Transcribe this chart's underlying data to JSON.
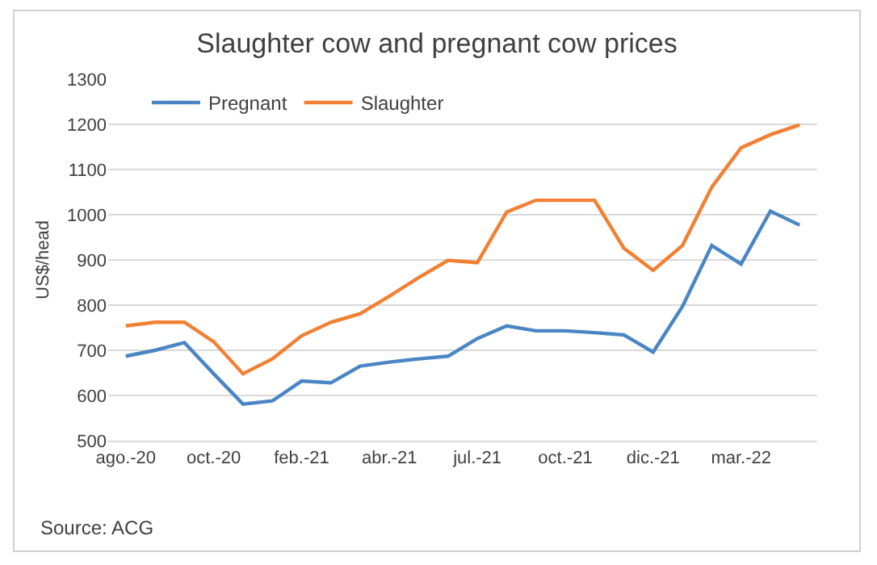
{
  "chart_data": {
    "type": "line",
    "title": "Slaughter cow and pregnant cow prices",
    "ylabel": "US$/head",
    "categories": [
      "ago.-20",
      null,
      null,
      "oct.-20",
      null,
      null,
      "feb.-21",
      null,
      null,
      "abr.-21",
      null,
      null,
      "jul.-21",
      null,
      null,
      "oct.-21",
      null,
      null,
      "dic.-21",
      null,
      null,
      "mar.-22",
      null,
      null
    ],
    "series": [
      {
        "name": "Pregnant",
        "color": "#4a86c4",
        "values": [
          687,
          700,
          717,
          648,
          581,
          588,
          632,
          628,
          665,
          674,
          681,
          687,
          726,
          754,
          743,
          743,
          739,
          734,
          696,
          797,
          932,
          891,
          1008,
          977
        ]
      },
      {
        "name": "Slaughter",
        "color": "#f28033",
        "values": [
          754,
          762,
          762,
          719,
          648,
          681,
          732,
          762,
          781,
          820,
          861,
          899,
          894,
          1006,
          1032,
          1032,
          1032,
          926,
          877,
          932,
          1061,
          1148,
          1177,
          1199
        ]
      }
    ],
    "ylim": [
      500,
      1300
    ],
    "yticks": [
      500,
      600,
      700,
      800,
      900,
      1000,
      1100,
      1200,
      1300
    ],
    "grid": "y",
    "legend": "top left",
    "marker": "none",
    "line_style": "solid",
    "annotations": [
      "Source: ACG"
    ]
  }
}
